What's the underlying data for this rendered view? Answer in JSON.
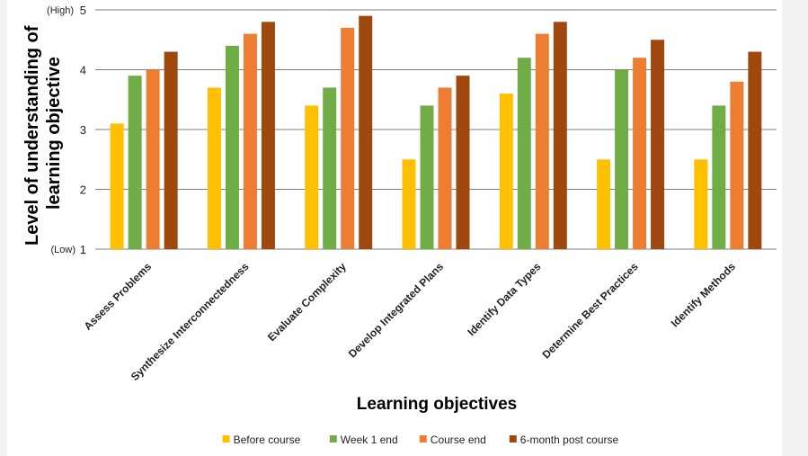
{
  "chart_data": {
    "type": "bar",
    "xlabel": "Learning objectives",
    "ylabel_lines": [
      "Level of understanding of",
      "learning objective"
    ],
    "ylim": [
      1,
      5
    ],
    "yticks": [
      1,
      2,
      3,
      4,
      5
    ],
    "ytick_notes": {
      "high": "(High)",
      "low": "(Low)"
    },
    "grid": true,
    "legend_position": "bottom",
    "categories": [
      "Assess Problems",
      "Synthesize Interconnectedness",
      "Evaluate Complexity",
      "Develop Integrated Plans",
      "Identify Data Types",
      "Determine Best Practices",
      "Identify Methods"
    ],
    "series": [
      {
        "name": "Before course",
        "color": "#ffc000",
        "values": [
          3.1,
          3.7,
          3.4,
          2.5,
          3.6,
          2.5,
          2.5
        ]
      },
      {
        "name": "Week 1 end",
        "color": "#70ad47",
        "values": [
          3.9,
          4.4,
          3.7,
          3.4,
          4.2,
          4.0,
          3.4
        ]
      },
      {
        "name": "Course end",
        "color": "#ed7d31",
        "values": [
          4.0,
          4.6,
          4.7,
          3.7,
          4.6,
          4.2,
          3.8
        ]
      },
      {
        "name": "6-month post course",
        "color": "#9e480e",
        "values": [
          4.3,
          4.8,
          4.9,
          3.9,
          4.8,
          4.5,
          4.3
        ]
      }
    ]
  }
}
